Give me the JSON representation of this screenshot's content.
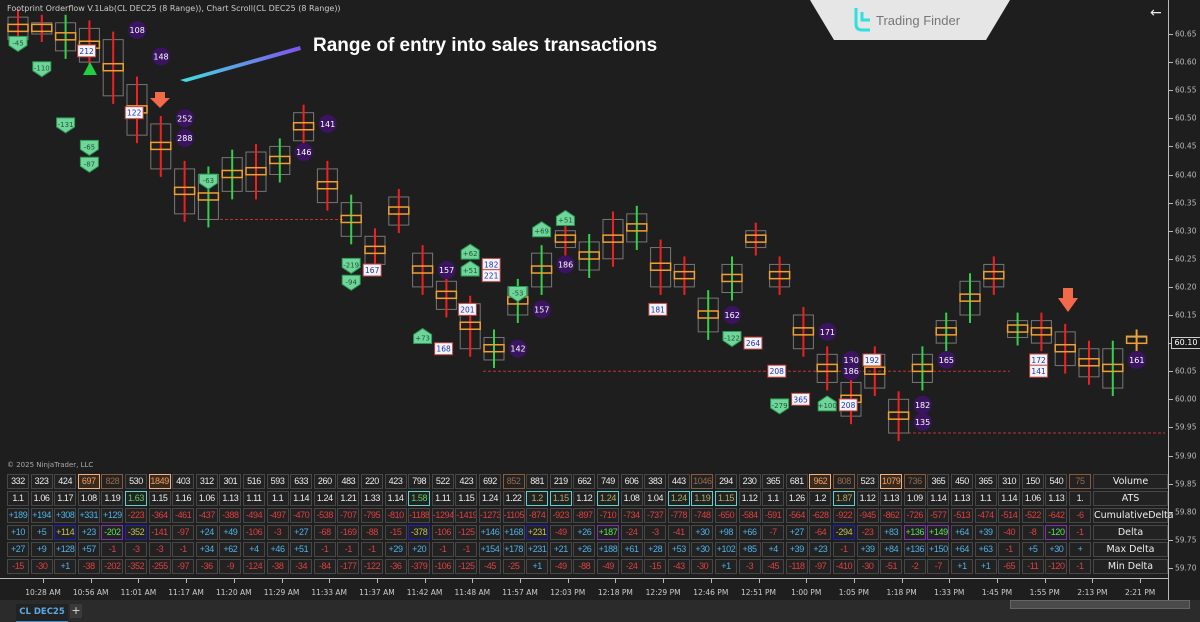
{
  "window": {
    "title": "Footprint Orderflow V.1Lab(CL DEC25 (8 Range)), Chart Scroll(CL DEC25 (8 Range))",
    "back_icon": "arrow-left-icon",
    "f_button": "F"
  },
  "annotation": {
    "text": "Range of entry into sales transactions"
  },
  "logo": {
    "text": "Trading Finder"
  },
  "colors": {
    "background": "#1e1e1e",
    "up": "#35d04a",
    "down": "#f02020",
    "poc": "#f0a030",
    "positive_text": "#4fb3e8",
    "negative_text": "#e04040",
    "bubble": "#3a1460",
    "delta_marker": "#6fd59a"
  },
  "price_axis": {
    "labels": [
      "60.65",
      "60.60",
      "60.55",
      "60.50",
      "60.45",
      "60.40",
      "60.35",
      "60.30",
      "60.25",
      "60.20",
      "60.15",
      "60.10",
      "60.05",
      "60.00",
      "59.95",
      "59.90",
      "59.85",
      "59.80",
      "59.75",
      "59.70"
    ],
    "current_price": "60.10"
  },
  "time_axis": {
    "labels": [
      "10:28 AM",
      "10:56 AM",
      "11:01 AM",
      "11:17 AM",
      "11:20 AM",
      "11:29 AM",
      "11:33 AM",
      "11:37 AM",
      "11:42 AM",
      "11:48 AM",
      "11:57 AM",
      "12:03 PM",
      "12:18 PM",
      "12:29 PM",
      "12:46 PM",
      "12:51 PM",
      "1:00 PM",
      "1:05 PM",
      "1:18 PM",
      "1:33 PM",
      "1:45 PM",
      "1:55 PM",
      "2:13 PM",
      "2:21 PM"
    ]
  },
  "candles": [
    {
      "h": 60.68,
      "l": 60.64,
      "d": "down"
    },
    {
      "h": 60.67,
      "l": 60.65,
      "d": "down"
    },
    {
      "h": 60.67,
      "l": 60.62,
      "d": "up"
    },
    {
      "h": 60.66,
      "l": 60.6,
      "d": "down"
    },
    {
      "h": 60.64,
      "l": 60.54,
      "d": "down"
    },
    {
      "h": 60.56,
      "l": 60.47,
      "d": "down"
    },
    {
      "h": 60.49,
      "l": 60.41,
      "d": "down"
    },
    {
      "h": 60.41,
      "l": 60.33,
      "d": "down"
    },
    {
      "h": 60.4,
      "l": 60.32,
      "d": "up"
    },
    {
      "h": 60.43,
      "l": 60.37,
      "d": "up"
    },
    {
      "h": 60.44,
      "l": 60.37,
      "d": "down"
    },
    {
      "h": 60.45,
      "l": 60.4,
      "d": "up"
    },
    {
      "h": 60.51,
      "l": 60.46,
      "d": "down"
    },
    {
      "h": 60.41,
      "l": 60.35,
      "d": "down"
    },
    {
      "h": 60.35,
      "l": 60.29,
      "d": "up"
    },
    {
      "h": 60.29,
      "l": 60.24,
      "d": "down"
    },
    {
      "h": 60.36,
      "l": 60.31,
      "d": "down"
    },
    {
      "h": 60.26,
      "l": 60.2,
      "d": "down"
    },
    {
      "h": 60.21,
      "l": 60.16,
      "d": "down"
    },
    {
      "h": 60.17,
      "l": 60.09,
      "d": "down"
    },
    {
      "h": 60.11,
      "l": 60.07,
      "d": "up"
    },
    {
      "h": 60.2,
      "l": 60.15,
      "d": "up"
    },
    {
      "h": 60.26,
      "l": 60.2,
      "d": "up"
    },
    {
      "h": 60.3,
      "l": 60.27,
      "d": "down"
    },
    {
      "h": 60.28,
      "l": 60.23,
      "d": "up"
    },
    {
      "h": 60.32,
      "l": 60.25,
      "d": "down"
    },
    {
      "h": 60.33,
      "l": 60.28,
      "d": "up"
    },
    {
      "h": 60.27,
      "l": 60.2,
      "d": "down"
    },
    {
      "h": 60.24,
      "l": 60.2,
      "d": "down"
    },
    {
      "h": 60.18,
      "l": 60.12,
      "d": "up"
    },
    {
      "h": 60.24,
      "l": 60.19,
      "d": "up"
    },
    {
      "h": 60.3,
      "l": 60.27,
      "d": "down"
    },
    {
      "h": 60.24,
      "l": 60.2,
      "d": "down"
    },
    {
      "h": 60.15,
      "l": 60.09,
      "d": "down"
    },
    {
      "h": 60.08,
      "l": 60.03,
      "d": "down"
    },
    {
      "h": 60.03,
      "l": 59.97,
      "d": "down"
    },
    {
      "h": 60.08,
      "l": 60.02,
      "d": "down"
    },
    {
      "h": 60.0,
      "l": 59.94,
      "d": "down"
    },
    {
      "h": 60.08,
      "l": 60.03,
      "d": "up"
    },
    {
      "h": 60.14,
      "l": 60.1,
      "d": "up"
    },
    {
      "h": 60.21,
      "l": 60.15,
      "d": "up"
    },
    {
      "h": 60.24,
      "l": 60.2,
      "d": "down"
    },
    {
      "h": 60.14,
      "l": 60.11,
      "d": "up"
    },
    {
      "h": 60.14,
      "l": 60.1,
      "d": "down"
    },
    {
      "h": 60.12,
      "l": 60.06,
      "d": "down"
    },
    {
      "h": 60.09,
      "l": 60.04,
      "d": "down"
    },
    {
      "h": 60.09,
      "l": 60.02,
      "d": "up"
    },
    {
      "h": 60.11,
      "l": 60.1,
      "d": "flat"
    }
  ],
  "bubbles": [
    {
      "c": 4,
      "p": 60.657,
      "t": "108"
    },
    {
      "c": 5,
      "p": 60.61,
      "t": "148"
    },
    {
      "c": 6,
      "p": 60.5,
      "t": "252"
    },
    {
      "c": 6,
      "p": 60.465,
      "t": "288"
    },
    {
      "c": 12,
      "p": 60.49,
      "t": "141"
    },
    {
      "c": 11,
      "p": 60.44,
      "t": "146"
    },
    {
      "c": 17,
      "p": 60.23,
      "t": "157"
    },
    {
      "c": 22,
      "p": 60.24,
      "t": "186"
    },
    {
      "c": 21,
      "p": 60.16,
      "t": "157"
    },
    {
      "c": 20,
      "p": 60.09,
      "t": "142"
    },
    {
      "c": 29,
      "p": 60.15,
      "t": "162"
    },
    {
      "c": 33,
      "p": 60.12,
      "t": "171"
    },
    {
      "c": 34,
      "p": 60.07,
      "t": "130"
    },
    {
      "c": 34,
      "p": 60.05,
      "t": "186"
    },
    {
      "c": 37,
      "p": 59.99,
      "t": "182"
    },
    {
      "c": 37,
      "p": 59.96,
      "t": "135"
    },
    {
      "c": 38,
      "p": 60.07,
      "t": "165"
    },
    {
      "c": 46,
      "p": 60.07,
      "t": "161"
    }
  ],
  "volume_boxes": [
    {
      "c": 2,
      "p": 60.62,
      "t": "212"
    },
    {
      "c": 4,
      "p": 60.51,
      "t": "122"
    },
    {
      "c": 14,
      "p": 60.23,
      "t": "167"
    },
    {
      "c": 19,
      "p": 60.24,
      "t": "182"
    },
    {
      "c": 19,
      "p": 60.22,
      "t": "221"
    },
    {
      "c": 18,
      "p": 60.16,
      "t": "201"
    },
    {
      "c": 17,
      "p": 60.09,
      "t": "168"
    },
    {
      "c": 26,
      "p": 60.16,
      "t": "181"
    },
    {
      "c": 30,
      "p": 60.1,
      "t": "264"
    },
    {
      "c": 31,
      "p": 60.05,
      "t": "208"
    },
    {
      "c": 32,
      "p": 60.0,
      "t": "365"
    },
    {
      "c": 34,
      "p": 59.99,
      "t": "208"
    },
    {
      "c": 35,
      "p": 60.07,
      "t": "192"
    },
    {
      "c": 42,
      "p": 60.07,
      "t": "172"
    },
    {
      "c": 42,
      "p": 60.05,
      "t": "141"
    }
  ],
  "delta_markers": [
    {
      "c": 0,
      "p": 60.635,
      "t": "-45"
    },
    {
      "c": 1,
      "p": 60.59,
      "t": "-110"
    },
    {
      "c": 2,
      "p": 60.49,
      "t": "-131"
    },
    {
      "c": 3,
      "p": 60.45,
      "t": "-65"
    },
    {
      "c": 3,
      "p": 60.42,
      "t": "-87"
    },
    {
      "c": 8,
      "p": 60.39,
      "t": "-63"
    },
    {
      "c": 14,
      "p": 60.24,
      "t": "-219"
    },
    {
      "c": 14,
      "p": 60.21,
      "t": "-94"
    },
    {
      "c": 19,
      "p": 60.26,
      "t": "+62"
    },
    {
      "c": 19,
      "p": 60.23,
      "t": "+51"
    },
    {
      "c": 22,
      "p": 60.3,
      "t": "+69"
    },
    {
      "c": 23,
      "p": 60.32,
      "t": "+51"
    },
    {
      "c": 21,
      "p": 60.19,
      "t": "-53"
    },
    {
      "c": 17,
      "p": 60.11,
      "t": "+73"
    },
    {
      "c": 30,
      "p": 60.11,
      "t": "-122"
    },
    {
      "c": 32,
      "p": 59.99,
      "t": "-279"
    },
    {
      "c": 34,
      "p": 59.99,
      "t": "+100"
    }
  ],
  "table": {
    "labels": [
      "Volume",
      "ATS",
      "CumulativeDelta",
      "Delta",
      "Max Delta",
      "Min Delta"
    ],
    "rows": [
      {
        "values": [
          "332",
          "323",
          "424",
          "697",
          "828",
          "530",
          "1849",
          "403",
          "312",
          "301",
          "516",
          "593",
          "633",
          "260",
          "483",
          "220",
          "423",
          "798",
          "522",
          "423",
          "692",
          "852",
          "881",
          "219",
          "662",
          "749",
          "606",
          "383",
          "443",
          "1046",
          "294",
          "230",
          "365",
          "681",
          "962",
          "808",
          "523",
          "1079",
          "736",
          "365",
          "450",
          "365",
          "310",
          "150",
          "540",
          "75"
        ],
        "strong": [
          3,
          6,
          34,
          37
        ],
        "dim": [
          4,
          21,
          29,
          35,
          38,
          45
        ]
      },
      {
        "values": [
          "1.1",
          "1.06",
          "1.17",
          "1.08",
          "1.19",
          "1.63",
          "1.15",
          "1.16",
          "1.06",
          "1.13",
          "1.11",
          "1.1",
          "1.14",
          "1.24",
          "1.21",
          "1.33",
          "1.14",
          "1.58",
          "1.11",
          "1.15",
          "1.24",
          "1.22",
          "1.2",
          "1.15",
          "1.12",
          "1.24",
          "1.08",
          "1.04",
          "1.24",
          "1.19",
          "1.15",
          "1.12",
          "1.1",
          "1.26",
          "1.2",
          "1.87",
          "1.12",
          "1.13",
          "1.09",
          "1.14",
          "1.13",
          "1.1",
          "1.14",
          "1.06",
          "1.13",
          "1."
        ],
        "cyan": [
          5,
          17,
          22,
          23,
          25,
          28,
          29,
          30,
          35
        ]
      },
      {
        "values": [
          "+189",
          "+194",
          "+308",
          "+331",
          "+129",
          "-223",
          "-364",
          "-461",
          "-437",
          "-388",
          "-494",
          "-497",
          "-470",
          "-538",
          "-707",
          "-795",
          "-810",
          "-1188",
          "-1294",
          "-1419",
          "-1273",
          "-1105",
          "-874",
          "-923",
          "-897",
          "-710",
          "-734",
          "-737",
          "-778",
          "-748",
          "-650",
          "-584",
          "-591",
          "-564",
          "-628",
          "-922",
          "-945",
          "-862",
          "-726",
          "-577",
          "-513",
          "-474",
          "-514",
          "-522",
          "-642",
          "-6"
        ]
      },
      {
        "values": [
          "+10",
          "+5",
          "+114",
          "+23",
          "-202",
          "-352",
          "-141",
          "-97",
          "+24",
          "+49",
          "-106",
          "-3",
          "+27",
          "-68",
          "-169",
          "-88",
          "-15",
          "-378",
          "-106",
          "-125",
          "+146",
          "+168",
          "+231",
          "-49",
          "+26",
          "+187",
          "-24",
          "-3",
          "-41",
          "+30",
          "+98",
          "+66",
          "-7",
          "+27",
          "-64",
          "-294",
          "-23",
          "+83",
          "+136",
          "+149",
          "+64",
          "+39",
          "-40",
          "-8",
          "-120",
          "-1"
        ],
        "blue": [
          2,
          5,
          17,
          22,
          35
        ],
        "purple": [
          4,
          25,
          38,
          39,
          44
        ]
      },
      {
        "values": [
          "+27",
          "+9",
          "+128",
          "+57",
          "-1",
          "-3",
          "-3",
          "-1",
          "+34",
          "+62",
          "+4",
          "+46",
          "+51",
          "-1",
          "-1",
          "-1",
          "+29",
          "+20",
          "-1",
          "-1",
          "+154",
          "+178",
          "+231",
          "+21",
          "+26",
          "+188",
          "+61",
          "+28",
          "+53",
          "+30",
          "+102",
          "+85",
          "+4",
          "+39",
          "+23",
          "-1",
          "+39",
          "+84",
          "+136",
          "+150",
          "+64",
          "+63",
          "-1",
          "+5",
          "+30",
          "+"
        ]
      },
      {
        "values": [
          "-15",
          "-30",
          "+1",
          "-38",
          "-202",
          "-352",
          "-255",
          "-97",
          "-36",
          "-9",
          "-124",
          "-38",
          "-34",
          "-84",
          "-177",
          "-122",
          "-36",
          "-379",
          "-106",
          "-125",
          "-45",
          "-25",
          "+1",
          "-49",
          "-88",
          "-49",
          "-24",
          "-15",
          "-43",
          "-30",
          "+1",
          "-3",
          "-45",
          "-118",
          "-97",
          "-410",
          "-30",
          "-51",
          "-2",
          "-7",
          "+1",
          "+1",
          "-65",
          "-11",
          "-120",
          "-1"
        ]
      }
    ]
  },
  "copyright": "© 2025 NinjaTrader, LLC",
  "tabs": [
    {
      "label": "CL DEC25"
    }
  ],
  "add_tab": "+"
}
